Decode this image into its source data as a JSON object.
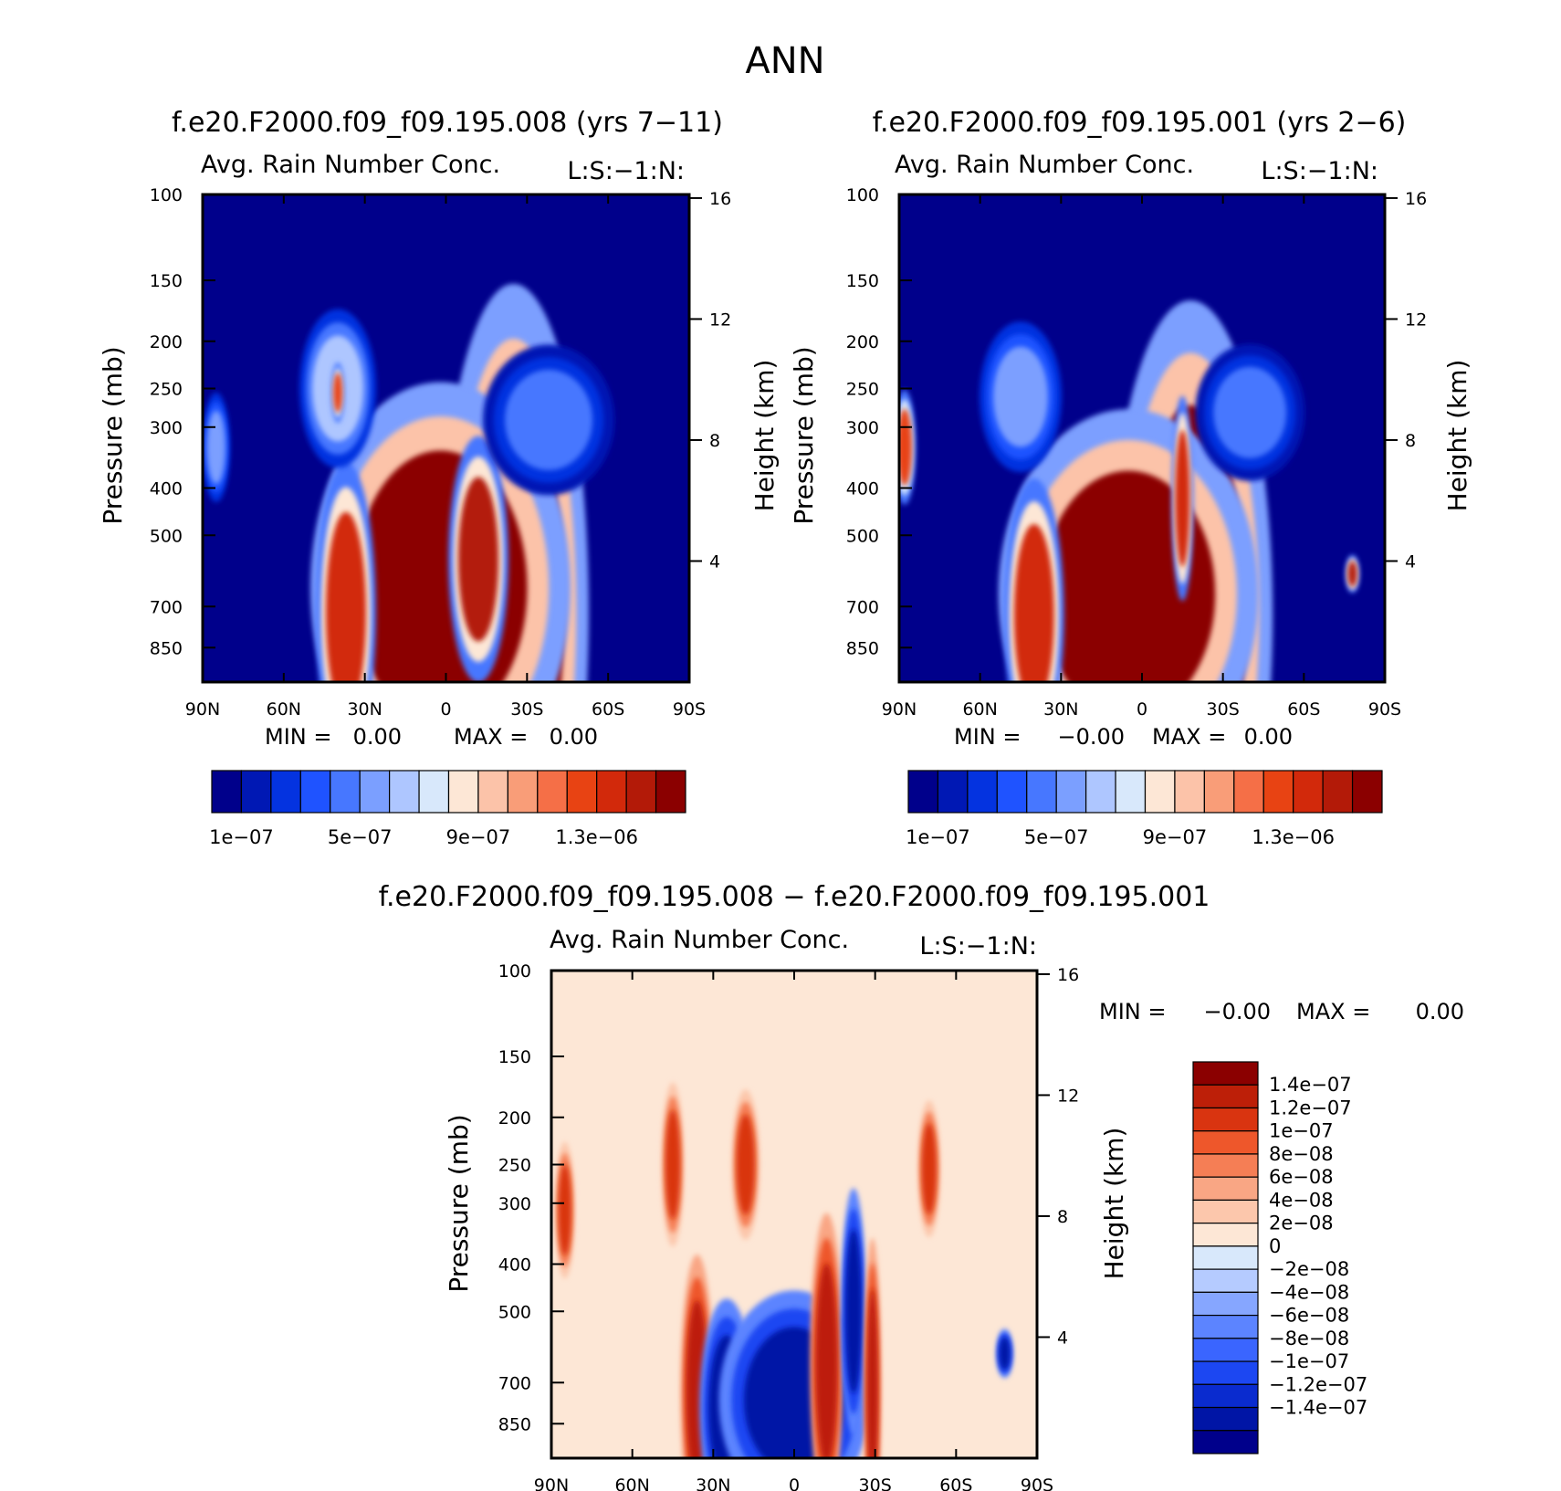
{
  "figure_title": "ANN",
  "colors": {
    "seq_palette": [
      "#00008b",
      "#0018b4",
      "#0433e0",
      "#1f53ff",
      "#4777ff",
      "#7b9fff",
      "#aec6ff",
      "#d8e8fb",
      "#fde7d6",
      "#fcc3a9",
      "#f99d78",
      "#f56f47",
      "#e84313",
      "#d2290b",
      "#b31a08",
      "#8b0000"
    ],
    "diff_palette": [
      "#00008b",
      "#0015a6",
      "#0a2bcf",
      "#1c47f2",
      "#3a65ff",
      "#5c84ff",
      "#86a6ff",
      "#b5cbff",
      "#d8e8fb",
      "#fde7d6",
      "#fcc7ac",
      "#f9a684",
      "#f57e55",
      "#ee572b",
      "#d93410",
      "#bd1f08",
      "#8b0000"
    ]
  },
  "chart_data": [
    {
      "type": "heatmap",
      "title": "f.e20.F2000.f09_f09.195.008 (yrs 7−11)",
      "subtitle": "Avg. Rain Number Conc.",
      "corner_label": "L:S:−1:N:",
      "xlabel": "",
      "ylabel": "Pressure (mb)",
      "y2label": "Height (km)",
      "x_ticks": [
        "90N",
        "60N",
        "30N",
        "0",
        "30S",
        "60S",
        "90S"
      ],
      "y_ticks": [
        "100",
        "150",
        "200",
        "250",
        "300",
        "400",
        "500",
        "700",
        "850"
      ],
      "y2_ticks": [
        "16",
        "12",
        "8",
        "4"
      ],
      "stats": {
        "min_label": "MIN =",
        "min_value": "0.00",
        "max_label": "MAX =",
        "max_value": "0.00"
      },
      "colorbar_labels": [
        "1e−07",
        "5e−07",
        "9e−07",
        "1.3e−06"
      ],
      "features": [
        {
          "lat": -25,
          "p": 720,
          "value": 1.5e-06,
          "w": 55,
          "h": 240,
          "rot": 0
        },
        {
          "lat": 2,
          "p": 640,
          "value": 1.5e-06,
          "w": 95,
          "h": 150,
          "rot": 0
        },
        {
          "lat": -12,
          "p": 560,
          "value": 1.4e-06,
          "w": 22,
          "h": 90,
          "rot": 0
        },
        {
          "lat": 37,
          "p": 720,
          "value": 1.3e-06,
          "w": 22,
          "h": 110,
          "rot": 0
        },
        {
          "lat": 40,
          "p": 250,
          "value": 6e-07,
          "w": 28,
          "h": 58,
          "rot": 0
        },
        {
          "lat": 40,
          "p": 255,
          "value": 1.2e-06,
          "w": 5,
          "h": 22,
          "rot": 0
        },
        {
          "lat": 85,
          "p": 330,
          "value": 5e-07,
          "w": 10,
          "h": 40,
          "rot": 0
        },
        {
          "lat": -38,
          "p": 290,
          "value": 4e-07,
          "w": 48,
          "h": 55,
          "rot": 0
        }
      ]
    },
    {
      "type": "heatmap",
      "title": "f.e20.F2000.f09_f09.195.001 (yrs 2−6)",
      "subtitle": "Avg. Rain Number Conc.",
      "corner_label": "L:S:−1:N:",
      "xlabel": "",
      "ylabel": "Pressure (mb)",
      "y2label": "Height (km)",
      "x_ticks": [
        "90N",
        "60N",
        "30N",
        "0",
        "30S",
        "60S",
        "90S"
      ],
      "y_ticks": [
        "100",
        "150",
        "200",
        "250",
        "300",
        "400",
        "500",
        "700",
        "850"
      ],
      "y2_ticks": [
        "16",
        "12",
        "8",
        "4"
      ],
      "stats": {
        "min_label": "MIN =",
        "min_value": "−0.00",
        "max_label": "MAX =",
        "max_value": "0.00"
      },
      "colorbar_labels": [
        "1e−07",
        "5e−07",
        "9e−07",
        "1.3e−06"
      ],
      "features": [
        {
          "lat": -18,
          "p": 730,
          "value": 1.5e-06,
          "w": 60,
          "h": 230,
          "rot": 0
        },
        {
          "lat": 5,
          "p": 660,
          "value": 1.5e-06,
          "w": 95,
          "h": 135,
          "rot": 0
        },
        {
          "lat": -15,
          "p": 420,
          "value": 1.3e-06,
          "w": 8,
          "h": 75,
          "rot": 0
        },
        {
          "lat": 40,
          "p": 730,
          "value": 1.3e-06,
          "w": 22,
          "h": 100,
          "rot": 0
        },
        {
          "lat": 45,
          "p": 260,
          "value": 5e-07,
          "w": 30,
          "h": 55,
          "rot": 0
        },
        {
          "lat": 88,
          "p": 330,
          "value": 1.2e-06,
          "w": 8,
          "h": 42,
          "rot": 0
        },
        {
          "lat": -78,
          "p": 600,
          "value": 1.4e-06,
          "w": 5,
          "h": 14,
          "rot": 0
        },
        {
          "lat": -40,
          "p": 280,
          "value": 4e-07,
          "w": 40,
          "h": 50,
          "rot": 0
        }
      ]
    },
    {
      "type": "heatmap",
      "title": "f.e20.F2000.f09_f09.195.008 − f.e20.F2000.f09_f09.195.001",
      "subtitle": "Avg. Rain Number Conc.",
      "corner_label": "L:S:−1:N:",
      "xlabel": "",
      "ylabel": "Pressure (mb)",
      "y2label": "Height (km)",
      "x_ticks": [
        "90N",
        "60N",
        "30N",
        "0",
        "30S",
        "60S",
        "90S"
      ],
      "y_ticks": [
        "100",
        "150",
        "200",
        "250",
        "300",
        "400",
        "500",
        "700",
        "850"
      ],
      "y2_ticks": [
        "16",
        "12",
        "8",
        "4"
      ],
      "stats": {
        "min_label": "MIN =",
        "min_value": "−0.00",
        "max_label": "MAX =",
        "max_value": "0.00"
      },
      "colorbar_labels": [
        "1.4e−07",
        "1.2e−07",
        "1e−07",
        "8e−08",
        "6e−08",
        "4e−08",
        "2e−08",
        "0",
        "−2e−08",
        "−4e−08",
        "−6e−08",
        "−8e−08",
        "−1e−07",
        "−1.2e−07",
        "−1.4e−07"
      ],
      "features": [
        {
          "lat": 36,
          "p": 730,
          "value": 1.5e-07,
          "w": 12,
          "h": 100,
          "rot": 0
        },
        {
          "lat": 25,
          "p": 790,
          "value": -1.5e-07,
          "w": 20,
          "h": 80,
          "rot": 0
        },
        {
          "lat": 0,
          "p": 760,
          "value": -1.5e-07,
          "w": 55,
          "h": 80,
          "rot": 0
        },
        {
          "lat": -12,
          "p": 640,
          "value": 1.5e-07,
          "w": 12,
          "h": 110,
          "rot": 0
        },
        {
          "lat": -22,
          "p": 500,
          "value": -1.5e-07,
          "w": 9,
          "h": 90,
          "rot": 0
        },
        {
          "lat": -29,
          "p": 720,
          "value": 1.5e-07,
          "w": 6,
          "h": 110,
          "rot": 0
        },
        {
          "lat": -78,
          "p": 610,
          "value": -1.5e-07,
          "w": 6,
          "h": 18,
          "rot": 0
        },
        {
          "lat": 18,
          "p": 250,
          "value": 1.2e-07,
          "w": 10,
          "h": 55,
          "rot": 0
        },
        {
          "lat": 45,
          "p": 250,
          "value": 1.2e-07,
          "w": 8,
          "h": 60,
          "rot": 0
        },
        {
          "lat": 85,
          "p": 310,
          "value": 1.2e-07,
          "w": 7,
          "h": 50,
          "rot": 0
        },
        {
          "lat": -50,
          "p": 255,
          "value": 1.2e-07,
          "w": 8,
          "h": 50,
          "rot": 0
        }
      ]
    }
  ]
}
